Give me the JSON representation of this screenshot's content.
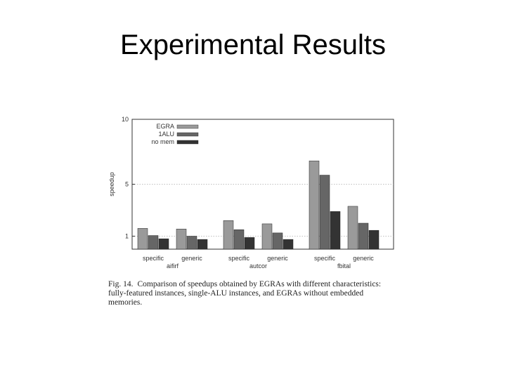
{
  "slide": {
    "title": "Experimental Results"
  },
  "caption": {
    "label": "Fig. 14.",
    "text": "Comparison of speedups obtained by EGRAs with different characteristics: fully-featured instances, single-ALU instances, and EGRAs without embedded memories."
  },
  "chart_data": {
    "type": "bar",
    "ylabel": "speedup",
    "xlabel": "",
    "ylim": [
      0,
      10
    ],
    "yticks": [
      1,
      5,
      10
    ],
    "grid": "horizontal dotted at y ticks",
    "legend_position": "top-left",
    "groups": [
      {
        "name": "aifirf",
        "subcategories": [
          "specific",
          "generic"
        ]
      },
      {
        "name": "autcor",
        "subcategories": [
          "specific",
          "generic"
        ]
      },
      {
        "name": "fbital",
        "subcategories": [
          "specific",
          "generic"
        ]
      }
    ],
    "categories": [
      "specific",
      "generic",
      "specific",
      "generic",
      "specific",
      "generic"
    ],
    "series": [
      {
        "name": "EGRA",
        "color": "#9a9a9a",
        "values": [
          1.6,
          1.55,
          2.2,
          1.95,
          6.8,
          3.3
        ]
      },
      {
        "name": "1ALU",
        "color": "#666666",
        "values": [
          1.05,
          1.0,
          1.5,
          1.25,
          5.7,
          2.0
        ]
      },
      {
        "name": "no mem",
        "color": "#333333",
        "values": [
          0.8,
          0.75,
          0.9,
          0.75,
          2.9,
          1.45
        ]
      }
    ]
  }
}
